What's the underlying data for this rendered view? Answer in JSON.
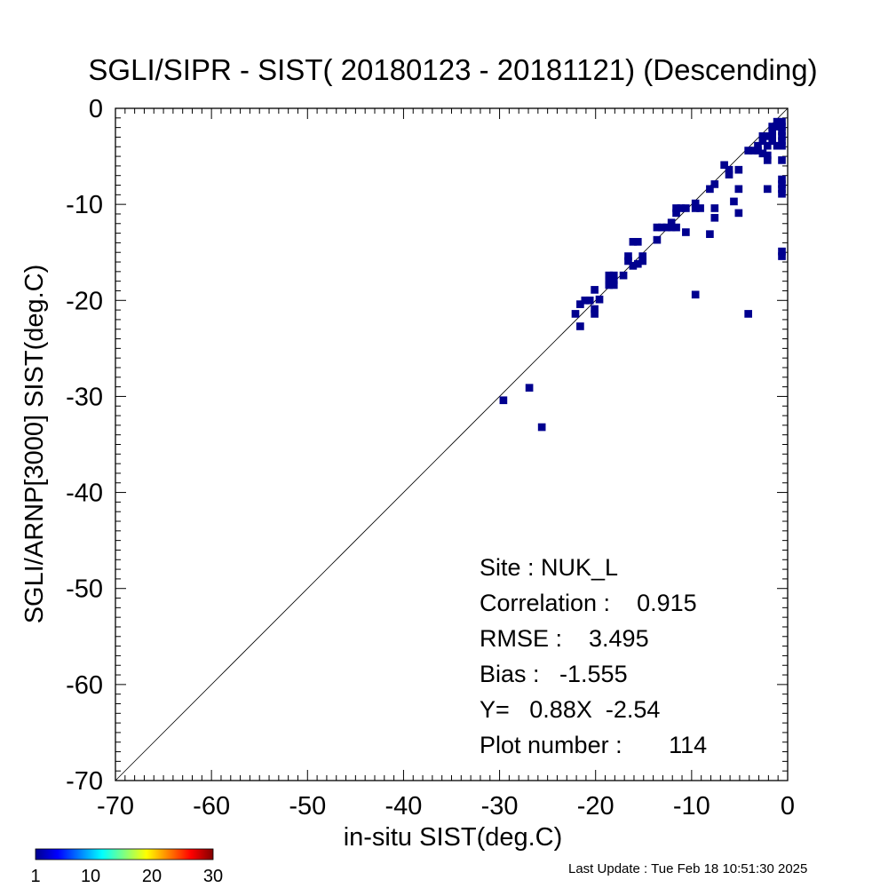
{
  "chart_data": {
    "type": "scatter",
    "title": "SGLI/SIPR - SIST( 20180123 - 20181121) (Descending)",
    "xlabel": "in-situ SIST(deg.C)",
    "ylabel": "SGLI/ARNP[3000]    SIST(deg.C)",
    "xlim": [
      -70,
      0
    ],
    "ylim": [
      -70,
      0
    ],
    "x_ticks": [
      "-70",
      "-60",
      "-50",
      "-40",
      "-30",
      "-20",
      "-10",
      "0"
    ],
    "y_ticks": [
      "-70",
      "-60",
      "-50",
      "-40",
      "-30",
      "-20",
      "-10",
      "0"
    ],
    "reference_line": "1:1",
    "grid": false,
    "bin_size": 0.5,
    "point_color": "#00008f",
    "points": [
      [
        -29.5,
        -30.0
      ],
      [
        -26.8,
        -28.7
      ],
      [
        -25.5,
        -32.8
      ],
      [
        -22.0,
        -21.0
      ],
      [
        -21.5,
        -22.3
      ],
      [
        -21.5,
        -20.0
      ],
      [
        -21.0,
        -19.6
      ],
      [
        -20.5,
        -19.6
      ],
      [
        -20.0,
        -20.5
      ],
      [
        -20.0,
        -21.0
      ],
      [
        -19.5,
        -19.5
      ],
      [
        -20.0,
        -18.5
      ],
      [
        -18.5,
        -17.0
      ],
      [
        -18.5,
        -17.5
      ],
      [
        -18.5,
        -18.0
      ],
      [
        -18.0,
        -17.0
      ],
      [
        -18.0,
        -17.5
      ],
      [
        -18.0,
        -18.0
      ],
      [
        -17.0,
        -17.0
      ],
      [
        -16.5,
        -15.5
      ],
      [
        -16.5,
        -15.0
      ],
      [
        -16.0,
        -16.0
      ],
      [
        -16.0,
        -13.5
      ],
      [
        -15.5,
        -13.5
      ],
      [
        -15.5,
        -15.8
      ],
      [
        -15.0,
        -15.5
      ],
      [
        -15.0,
        -15.0
      ],
      [
        -13.5,
        -12.0
      ],
      [
        -13.5,
        -13.3
      ],
      [
        -13.0,
        -12.0
      ],
      [
        -12.5,
        -12.0
      ],
      [
        -12.0,
        -11.5
      ],
      [
        -12.0,
        -12.0
      ],
      [
        -11.5,
        -12.0
      ],
      [
        -11.5,
        -10.5
      ],
      [
        -11.5,
        -10.0
      ],
      [
        -11.0,
        -10.0
      ],
      [
        -10.5,
        -10.0
      ],
      [
        -10.5,
        -12.5
      ],
      [
        -9.5,
        -9.5
      ],
      [
        -9.5,
        -10.0
      ],
      [
        -9.0,
        -10.0
      ],
      [
        -8.0,
        -8.0
      ],
      [
        -7.5,
        -7.5
      ],
      [
        -7.5,
        -10.0
      ],
      [
        -7.5,
        -11.0
      ],
      [
        -8.0,
        -12.7
      ],
      [
        -6.5,
        -5.5
      ],
      [
        -6.0,
        -6.0
      ],
      [
        -6.0,
        -6.5
      ],
      [
        -5.5,
        -9.3
      ],
      [
        -5.0,
        -6.0
      ],
      [
        -5.0,
        -8.0
      ],
      [
        -5.0,
        -10.5
      ],
      [
        -4.0,
        -4.0
      ],
      [
        -4.0,
        -21.0
      ],
      [
        -3.5,
        -4.0
      ],
      [
        -3.0,
        -3.5
      ],
      [
        -3.0,
        -4.0
      ],
      [
        -2.5,
        -3.0
      ],
      [
        -2.5,
        -2.5
      ],
      [
        -2.5,
        -4.3
      ],
      [
        -2.0,
        -2.5
      ],
      [
        -2.0,
        -3.5
      ],
      [
        -2.0,
        -4.5
      ],
      [
        -2.0,
        -5.0
      ],
      [
        -2.0,
        -8.0
      ],
      [
        -1.5,
        -2.0
      ],
      [
        -1.5,
        -2.5
      ],
      [
        -1.5,
        -3.0
      ],
      [
        -1.0,
        -1.5
      ],
      [
        -1.0,
        -3.5
      ],
      [
        -0.5,
        -1.0
      ],
      [
        -0.5,
        -1.5
      ],
      [
        -0.5,
        -2.0
      ],
      [
        -0.5,
        -2.5
      ],
      [
        -0.5,
        -3.0
      ],
      [
        -0.5,
        -3.5
      ],
      [
        -0.5,
        -5.0
      ],
      [
        -0.5,
        -7.0
      ],
      [
        -0.5,
        -7.5
      ],
      [
        -0.5,
        -8.0
      ],
      [
        -0.5,
        -8.5
      ],
      [
        -0.5,
        -14.5
      ],
      [
        -0.5,
        -15.0
      ],
      [
        -9.5,
        -19.0
      ],
      [
        -1.0,
        -1.0
      ],
      [
        -1.5,
        -1.5
      ]
    ],
    "stats": {
      "site": "Site : NUK_L",
      "correlation": "Correlation :    0.915",
      "rmse": "RMSE :    3.495",
      "bias": "Bias :   -1.555",
      "fit": "Y=   0.88X  -2.54",
      "plot_number": "Plot number :       114"
    },
    "colorbar": {
      "colormap": "jet",
      "ticks": [
        "1",
        "10",
        "20",
        "30"
      ],
      "colors": [
        "#00008f",
        "#0000ff",
        "#0080ff",
        "#00ffff",
        "#80ff80",
        "#ffff00",
        "#ff8000",
        "#ff0000",
        "#800000"
      ]
    }
  },
  "footer": {
    "last_update": "Last Update : Tue Feb 18 10:51:30 2025"
  }
}
